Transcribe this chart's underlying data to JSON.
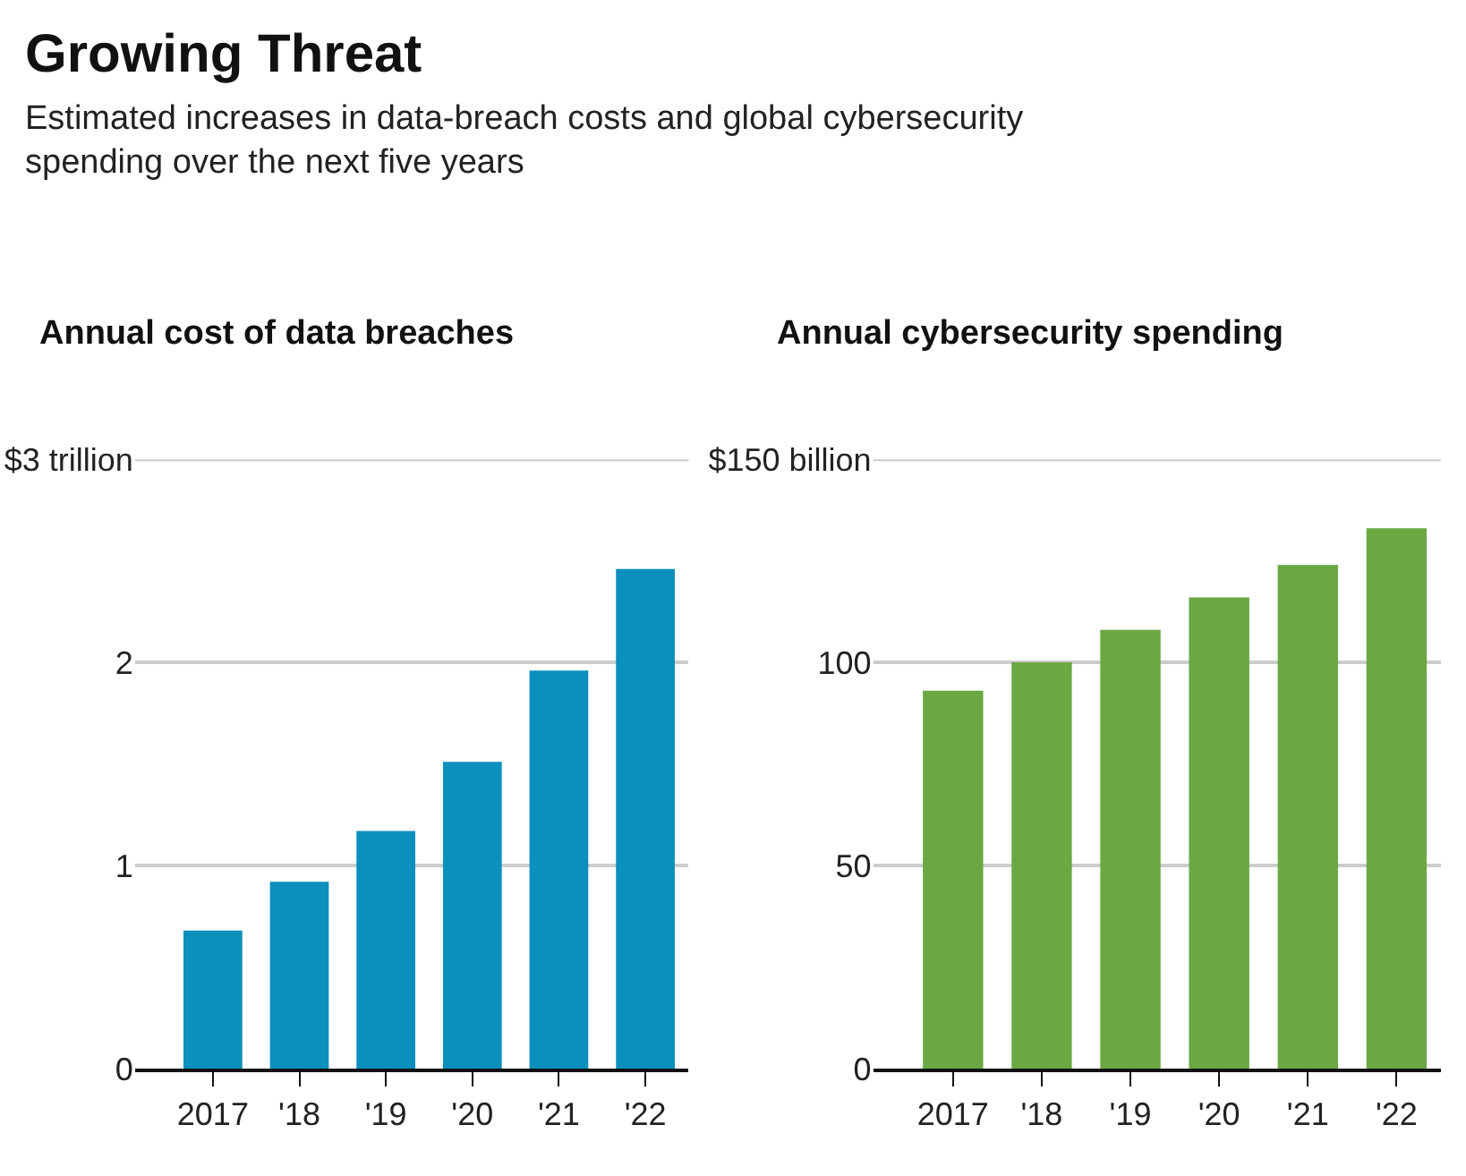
{
  "chart_data": [
    {
      "type": "other",
      "title": "Growing Threat",
      "subtitle": "Estimated increases in data-breach costs and global cybersecurity spending over the next five years"
    },
    {
      "type": "bar",
      "title": "Annual cost of data breaches",
      "categories": [
        "2017",
        "'18",
        "'19",
        "'20",
        "'21",
        "'22"
      ],
      "values": [
        0.68,
        0.92,
        1.17,
        1.51,
        1.96,
        2.46
      ],
      "color": "#0b8fbd",
      "ylim": [
        0,
        3
      ],
      "yticks": [
        0,
        1,
        2,
        {
          "value": 3,
          "label": "$3 trillion"
        }
      ],
      "grid": "y"
    },
    {
      "type": "bar",
      "title": "Annual cybersecurity spending",
      "categories": [
        "2017",
        "'18",
        "'19",
        "'20",
        "'21",
        "'22"
      ],
      "values": [
        93,
        100,
        108,
        116,
        124,
        133
      ],
      "color": "#6aa843",
      "ylim": [
        0,
        150
      ],
      "yticks": [
        0,
        50,
        100,
        {
          "value": 150,
          "label": "$150 billion"
        }
      ],
      "grid": "y"
    }
  ]
}
